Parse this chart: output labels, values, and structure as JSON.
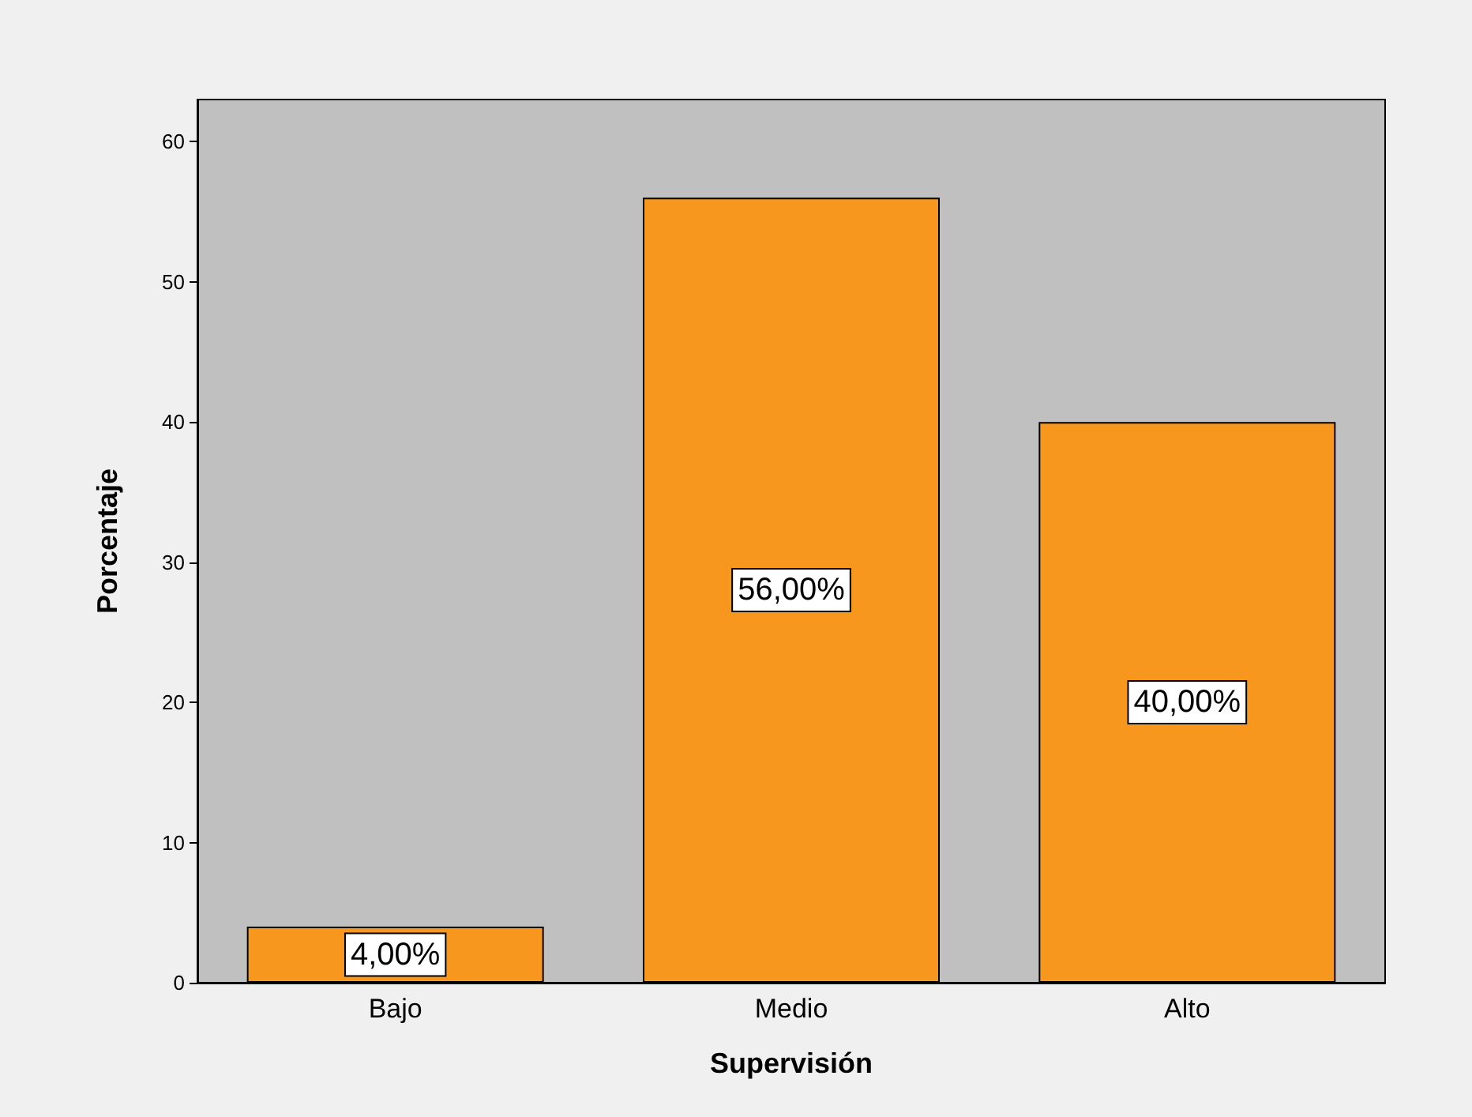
{
  "chart_data": {
    "type": "bar",
    "xlabel": "Supervisión",
    "ylabel": "Porcentaje",
    "categories": [
      "Bajo",
      "Medio",
      "Alto"
    ],
    "values": [
      4,
      56,
      40
    ],
    "color": "#f7971e",
    "value_labels": [
      "4,00%",
      "56,00%",
      "40,00%"
    ],
    "ylim": [
      0,
      63
    ],
    "yticks": [
      0,
      10,
      20,
      30,
      40,
      50,
      60
    ],
    "grid": false
  }
}
